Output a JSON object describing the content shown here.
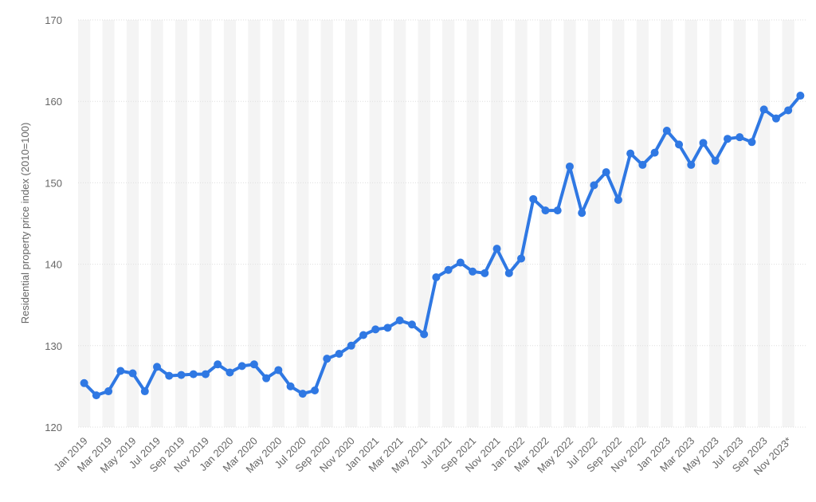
{
  "chart_data": {
    "type": "line",
    "title": "",
    "xlabel": "",
    "ylabel": "Residential property price index (2010=100)",
    "ylim": [
      120,
      170
    ],
    "y_ticks": [
      120,
      130,
      140,
      150,
      160,
      170
    ],
    "grid": "horizontal",
    "alternating_column_bands": true,
    "line_color": "#2f78e3",
    "band_color": "#f4f4f4",
    "grid_color": "#dedede",
    "x_tick_labels": [
      "Jan 2019",
      "Mar 2019",
      "May 2019",
      "Jul 2019",
      "Sep 2019",
      "Nov 2019",
      "Jan 2020",
      "Mar 2020",
      "May 2020",
      "Jul 2020",
      "Sep 2020",
      "Nov 2020",
      "Jan 2021",
      "Mar 2021",
      "May 2021",
      "Jul 2021",
      "Sep 2021",
      "Nov 2021",
      "Jan 2022",
      "Mar 2022",
      "May 2022",
      "Jul 2022",
      "Sep 2022",
      "Nov 2022",
      "Jan 2023",
      "Mar 2023",
      "May 2023",
      "Jul 2023",
      "Sep 2023",
      "Nov 2023*"
    ],
    "categories": [
      "Jan 2019",
      "Feb 2019",
      "Mar 2019",
      "Apr 2019",
      "May 2019",
      "Jun 2019",
      "Jul 2019",
      "Aug 2019",
      "Sep 2019",
      "Oct 2019",
      "Nov 2019",
      "Dec 2019",
      "Jan 2020",
      "Feb 2020",
      "Mar 2020",
      "Apr 2020",
      "May 2020",
      "Jun 2020",
      "Jul 2020",
      "Aug 2020",
      "Sep 2020",
      "Oct 2020",
      "Nov 2020",
      "Dec 2020",
      "Jan 2021",
      "Feb 2021",
      "Mar 2021",
      "Apr 2021",
      "May 2021",
      "Jun 2021",
      "Jul 2021",
      "Aug 2021",
      "Sep 2021",
      "Oct 2021",
      "Nov 2021",
      "Dec 2021",
      "Jan 2022",
      "Feb 2022",
      "Mar 2022",
      "Apr 2022",
      "May 2022",
      "Jun 2022",
      "Jul 2022",
      "Aug 2022",
      "Sep 2022",
      "Oct 2022",
      "Nov 2022",
      "Dec 2022",
      "Jan 2023",
      "Feb 2023",
      "Mar 2023",
      "Apr 2023",
      "May 2023",
      "Jun 2023",
      "Jul 2023",
      "Aug 2023",
      "Sep 2023",
      "Oct 2023",
      "Nov 2023*",
      "Dec 2023*"
    ],
    "series": [
      {
        "values": [
          125.4,
          123.9,
          124.4,
          126.9,
          126.6,
          124.4,
          127.4,
          126.3,
          126.4,
          126.5,
          126.5,
          127.7,
          126.7,
          127.5,
          127.7,
          126.0,
          127.0,
          125.0,
          124.1,
          124.5,
          128.4,
          129.0,
          130.0,
          131.3,
          132.0,
          132.2,
          133.1,
          132.6,
          131.4,
          138.4,
          139.3,
          140.2,
          139.1,
          138.9,
          141.9,
          138.9,
          140.7,
          148.0,
          146.6,
          146.6,
          152.0,
          146.3,
          149.7,
          151.3,
          147.9,
          153.6,
          152.2,
          153.7,
          156.4,
          154.7,
          152.2,
          154.9,
          152.7,
          155.4,
          155.6,
          155.0,
          159.0,
          157.9,
          158.9,
          160.7
        ]
      }
    ]
  }
}
